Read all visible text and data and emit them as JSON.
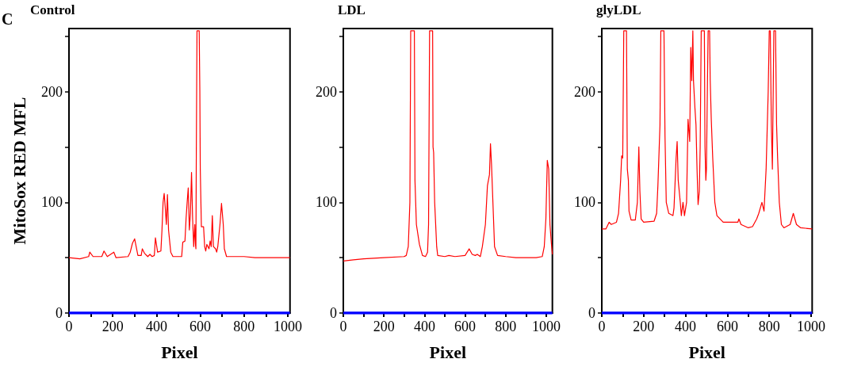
{
  "chart_data": [
    {
      "type": "line",
      "title": "Control",
      "xlabel": "Pixel",
      "ylabel": "MitoSox RED MFL",
      "annotations": [
        "C"
      ],
      "xlim": [
        0,
        1010
      ],
      "ylim": [
        0,
        257
      ],
      "xticks": [
        0,
        {
          "value": 100,
          "label": null
        },
        200,
        {
          "value": 300,
          "label": null
        },
        400,
        {
          "value": 500,
          "label": null
        },
        600,
        {
          "value": 700,
          "label": null
        },
        800,
        {
          "value": 900,
          "label": null
        },
        1000
      ],
      "yticks": [
        0,
        {
          "value": 50,
          "label": null
        },
        100,
        {
          "value": 150,
          "label": null
        },
        200,
        {
          "value": 250,
          "label": null
        }
      ],
      "series": [
        {
          "color": "#ff0000",
          "x": [
            0,
            50,
            90,
            95,
            110,
            150,
            160,
            175,
            190,
            205,
            215,
            270,
            280,
            290,
            300,
            305,
            315,
            330,
            335,
            345,
            360,
            370,
            380,
            390,
            395,
            405,
            420,
            425,
            430,
            435,
            440,
            445,
            450,
            455,
            465,
            475,
            500,
            515,
            520,
            530,
            535,
            540,
            545,
            550,
            555,
            560,
            565,
            570,
            575,
            578,
            580,
            582,
            585,
            595,
            598,
            600,
            605,
            615,
            620,
            625,
            630,
            640,
            645,
            650,
            655,
            660,
            670,
            675,
            680,
            690,
            697,
            705,
            710,
            720,
            800,
            850,
            950,
            1010
          ],
          "values": [
            50,
            49,
            51,
            55,
            51,
            51,
            56,
            51,
            53,
            55,
            50,
            51,
            55,
            63,
            67,
            62,
            52,
            52,
            58,
            54,
            51,
            53,
            51,
            52,
            68,
            55,
            56,
            75,
            100,
            108,
            95,
            80,
            107,
            75,
            55,
            51,
            51,
            51,
            64,
            65,
            85,
            100,
            113,
            75,
            90,
            127,
            85,
            60,
            80,
            62,
            58,
            150,
            255,
            255,
            200,
            130,
            78,
            78,
            60,
            56,
            62,
            58,
            65,
            60,
            88,
            60,
            58,
            55,
            60,
            80,
            99,
            80,
            58,
            51,
            51,
            50,
            50,
            50
          ]
        },
        {
          "color": "#0000ff",
          "x": [
            0,
            1010
          ],
          "values": [
            0,
            0
          ]
        }
      ]
    },
    {
      "type": "line",
      "title": "LDL",
      "xlabel": "Pixel",
      "xlim": [
        0,
        1030
      ],
      "ylim": [
        0,
        257
      ],
      "xticks": [
        0,
        {
          "value": 100,
          "label": null
        },
        200,
        {
          "value": 300,
          "label": null
        },
        400,
        {
          "value": 500,
          "label": null
        },
        600,
        {
          "value": 700,
          "label": null
        },
        800,
        {
          "value": 900,
          "label": null
        },
        1000
      ],
      "yticks": [
        0,
        {
          "value": 50,
          "label": null
        },
        100,
        {
          "value": 150,
          "label": null
        },
        200,
        {
          "value": 250,
          "label": null
        }
      ],
      "series": [
        {
          "color": "#ff0000",
          "x": [
            0,
            50,
            100,
            200,
            300,
            310,
            320,
            328,
            332,
            350,
            353,
            360,
            375,
            390,
            405,
            415,
            420,
            425,
            440,
            442,
            445,
            450,
            455,
            460,
            465,
            500,
            520,
            550,
            600,
            620,
            635,
            650,
            660,
            675,
            685,
            700,
            710,
            720,
            725,
            730,
            737,
            745,
            760,
            800,
            850,
            950,
            980,
            990,
            998,
            1005,
            1012,
            1018,
            1025,
            1030
          ],
          "values": [
            47,
            48,
            49,
            50,
            51,
            52,
            60,
            100,
            255,
            255,
            120,
            80,
            62,
            52,
            51,
            55,
            80,
            255,
            255,
            150,
            145,
            100,
            80,
            60,
            52,
            51,
            52,
            51,
            52,
            58,
            53,
            52,
            53,
            51,
            60,
            80,
            115,
            125,
            153,
            135,
            100,
            60,
            52,
            51,
            50,
            50,
            51,
            60,
            85,
            138,
            130,
            80,
            63,
            53
          ]
        },
        {
          "color": "#0000ff",
          "x": [
            0,
            1030
          ],
          "values": [
            0,
            0
          ]
        }
      ]
    },
    {
      "type": "line",
      "title": "glyLDL",
      "xlabel": "Pixel",
      "xlim": [
        0,
        1005
      ],
      "ylim": [
        0,
        257
      ],
      "xticks": [
        0,
        {
          "value": 100,
          "label": null
        },
        200,
        {
          "value": 300,
          "label": null
        },
        400,
        {
          "value": 500,
          "label": null
        },
        600,
        {
          "value": 700,
          "label": null
        },
        800,
        {
          "value": 900,
          "label": null
        },
        1000
      ],
      "yticks": [
        0,
        {
          "value": 50,
          "label": null
        },
        100,
        {
          "value": 150,
          "label": null
        },
        200,
        {
          "value": 250,
          "label": null
        }
      ],
      "series": [
        {
          "color": "#ff0000",
          "x": [
            0,
            20,
            35,
            45,
            70,
            80,
            90,
            95,
            100,
            105,
            118,
            122,
            127,
            130,
            140,
            160,
            170,
            177,
            182,
            188,
            200,
            250,
            262,
            268,
            278,
            282,
            297,
            302,
            308,
            320,
            340,
            345,
            350,
            355,
            360,
            365,
            375,
            380,
            388,
            395,
            405,
            412,
            420,
            425,
            430,
            435,
            438,
            445,
            450,
            455,
            460,
            466,
            470,
            475,
            490,
            493,
            497,
            500,
            503,
            508,
            515,
            518,
            523,
            530,
            540,
            550,
            580,
            650,
            655,
            665,
            700,
            720,
            740,
            750,
            765,
            775,
            785,
            795,
            800,
            805,
            810,
            815,
            822,
            830,
            835,
            840,
            848,
            858,
            870,
            900,
            915,
            930,
            950,
            1005
          ],
          "values": [
            76,
            76,
            82,
            80,
            82,
            90,
            120,
            142,
            140,
            255,
            255,
            130,
            120,
            92,
            84,
            84,
            100,
            150,
            110,
            85,
            82,
            83,
            90,
            115,
            170,
            255,
            255,
            160,
            100,
            90,
            88,
            95,
            117,
            140,
            155,
            120,
            100,
            88,
            100,
            88,
            100,
            175,
            155,
            240,
            210,
            255,
            210,
            185,
            170,
            130,
            98,
            110,
            150,
            255,
            255,
            150,
            120,
            130,
            180,
            255,
            255,
            210,
            175,
            140,
            100,
            88,
            82,
            82,
            85,
            80,
            77,
            78,
            85,
            90,
            100,
            92,
            130,
            200,
            255,
            255,
            170,
            130,
            255,
            255,
            170,
            140,
            100,
            80,
            77,
            80,
            90,
            80,
            77,
            76
          ]
        },
        {
          "color": "#0000ff",
          "x": [
            0,
            1005
          ],
          "values": [
            0,
            0
          ]
        }
      ]
    }
  ]
}
